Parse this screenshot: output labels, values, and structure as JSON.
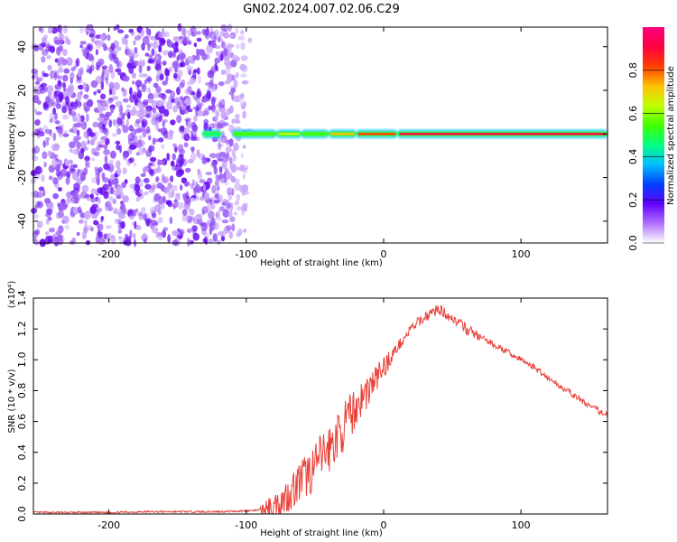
{
  "title": "GN02.2024.007.02.06.C29",
  "chart_data": [
    {
      "type": "heatmap",
      "xlabel": "Height of straight line (km)",
      "ylabel": "Frequency (Hz)",
      "xlim": [
        -255,
        163
      ],
      "ylim": [
        -50,
        49
      ],
      "xticks": [
        -200,
        -100,
        0,
        100
      ],
      "yticks": [
        -40,
        -20,
        0,
        20,
        40
      ],
      "colorbar": {
        "label": "Normalized spectral amplitude",
        "ticks": [
          "0.0",
          "0.2",
          "0.4",
          "0.6",
          "0.8"
        ],
        "range": [
          0,
          1
        ],
        "colors": [
          "#ffffff",
          "#b070ff",
          "#6000ff",
          "#0040ff",
          "#00c0ff",
          "#00ff80",
          "#40ff00",
          "#c0ff00",
          "#ffc000",
          "#ff4000",
          "#ff0040",
          "#ff0080"
        ]
      },
      "noise_region_x": [
        -255,
        -100
      ],
      "signal_band": {
        "x_start": -135,
        "x_end": 163,
        "frequency": 0,
        "segments": [
          {
            "x0": -132,
            "x1": -118,
            "amplitude": 0.45
          },
          {
            "x0": -110,
            "x1": -78,
            "amplitude": 0.5
          },
          {
            "x0": -78,
            "x1": -60,
            "amplitude": 0.6
          },
          {
            "x0": -60,
            "x1": -40,
            "amplitude": 0.55
          },
          {
            "x0": -40,
            "x1": -20,
            "amplitude": 0.7
          },
          {
            "x0": -20,
            "x1": 10,
            "amplitude": 0.85
          },
          {
            "x0": 10,
            "x1": 163,
            "amplitude": 0.9
          }
        ]
      }
    },
    {
      "type": "line",
      "xlabel": "Height of straight line (km)",
      "ylabel": "SNR (10 * v/v)",
      "y_multiplier": "(x10⁴)",
      "xlim": [
        -255,
        163
      ],
      "ylim": [
        0,
        1.4
      ],
      "xticks": [
        -200,
        -100,
        0,
        100
      ],
      "yticks": [
        "0.0",
        "0.2",
        "0.4",
        "0.6",
        "0.8",
        "1.0",
        "1.2",
        "1.4"
      ],
      "series": [
        {
          "color": "#e8413a",
          "x": [
            -255,
            -230,
            -200,
            -170,
            -140,
            -120,
            -100,
            -90,
            -80,
            -70,
            -60,
            -50,
            -45,
            -40,
            -30,
            -20,
            -10,
            0,
            10,
            20,
            30,
            40,
            50,
            60,
            70,
            80,
            90,
            100,
            110,
            120,
            130,
            140,
            150,
            163
          ],
          "y": [
            0.01,
            0.01,
            0.01,
            0.015,
            0.015,
            0.015,
            0.02,
            0.025,
            0.05,
            0.12,
            0.22,
            0.3,
            0.38,
            0.42,
            0.55,
            0.7,
            0.82,
            0.95,
            1.08,
            1.2,
            1.28,
            1.33,
            1.27,
            1.2,
            1.15,
            1.1,
            1.05,
            1.0,
            0.95,
            0.88,
            0.82,
            0.76,
            0.7,
            0.64
          ]
        }
      ]
    }
  ]
}
